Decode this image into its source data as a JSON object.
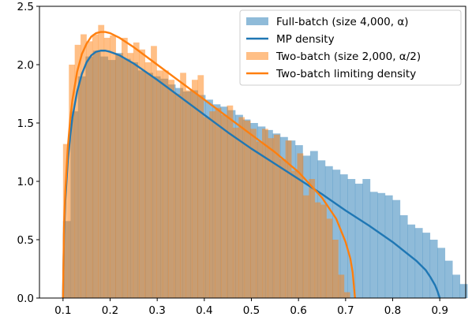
{
  "chart_data": {
    "type": "bar",
    "title": "",
    "xlabel": "",
    "ylabel": "",
    "xlim": [
      0.05,
      0.955
    ],
    "ylim": [
      0,
      2.5
    ],
    "xticks": [
      0.1,
      0.2,
      0.3,
      0.4,
      0.5,
      0.6,
      0.7,
      0.8,
      0.9
    ],
    "yticks": [
      0.0,
      0.5,
      1.0,
      1.5,
      2.0,
      2.5
    ],
    "grid": false,
    "legend_position": "top-right",
    "legend": [
      {
        "label": "Full-batch (size 4,000, α)",
        "kind": "patch",
        "series": "full"
      },
      {
        "label": "MP density",
        "kind": "line",
        "series": "mp"
      },
      {
        "label": "Two-batch (size 2,000, α/2)",
        "kind": "patch",
        "series": "two"
      },
      {
        "label": "Two-batch limiting density",
        "kind": "line",
        "series": "twolim"
      }
    ],
    "series": [
      {
        "id": "full",
        "type": "histogram",
        "color": "#1f77b4",
        "alpha": 0.5,
        "bin_width": 0.0159,
        "x_start": 0.1,
        "values": [
          0.66,
          1.6,
          1.9,
          2.07,
          2.12,
          2.07,
          2.04,
          2.1,
          2.05,
          2.02,
          1.95,
          1.93,
          1.9,
          1.88,
          1.83,
          1.8,
          1.77,
          1.78,
          1.74,
          1.7,
          1.66,
          1.64,
          1.61,
          1.57,
          1.53,
          1.5,
          1.47,
          1.44,
          1.41,
          1.38,
          1.35,
          1.31,
          1.22,
          1.26,
          1.18,
          1.13,
          1.1,
          1.06,
          1.02,
          0.98,
          1.02,
          0.91,
          0.9,
          0.88,
          0.84,
          0.71,
          0.63,
          0.6,
          0.56,
          0.5,
          0.43,
          0.32,
          0.2,
          0.12
        ]
      },
      {
        "id": "two",
        "type": "histogram",
        "color": "#ff7f0e",
        "alpha": 0.5,
        "bin_width": 0.01243,
        "x_start": 0.1,
        "values": [
          1.32,
          2.0,
          2.17,
          2.26,
          2.2,
          2.26,
          2.34,
          2.23,
          2.25,
          2.09,
          2.23,
          2.1,
          2.19,
          2.13,
          2.02,
          2.16,
          1.95,
          1.95,
          1.87,
          1.75,
          1.93,
          1.78,
          1.87,
          1.91,
          1.55,
          1.6,
          1.63,
          1.57,
          1.65,
          1.46,
          1.55,
          1.52,
          1.45,
          1.34,
          1.45,
          1.37,
          1.4,
          1.19,
          1.35,
          1.09,
          1.24,
          0.88,
          1.02,
          0.82,
          0.8,
          0.68,
          0.5,
          0.2,
          0.05,
          0.0
        ]
      },
      {
        "id": "mp",
        "type": "line",
        "color": "#1f77b4",
        "x": [
          0.1,
          0.102,
          0.105,
          0.11,
          0.115,
          0.12,
          0.13,
          0.14,
          0.15,
          0.16,
          0.17,
          0.18,
          0.19,
          0.2,
          0.22,
          0.25,
          0.3,
          0.35,
          0.4,
          0.45,
          0.5,
          0.55,
          0.6,
          0.65,
          0.7,
          0.75,
          0.8,
          0.85,
          0.87,
          0.88,
          0.89,
          0.895,
          0.9
        ],
        "y": [
          0.0,
          0.54,
          0.84,
          1.17,
          1.38,
          1.55,
          1.77,
          1.92,
          2.02,
          2.08,
          2.11,
          2.12,
          2.12,
          2.11,
          2.08,
          2.01,
          1.87,
          1.72,
          1.57,
          1.42,
          1.28,
          1.15,
          1.02,
          0.89,
          0.75,
          0.62,
          0.48,
          0.32,
          0.24,
          0.18,
          0.11,
          0.06,
          0.0
        ]
      },
      {
        "id": "twolim",
        "type": "line",
        "color": "#ff7f0e",
        "x": [
          0.1,
          0.102,
          0.105,
          0.11,
          0.115,
          0.12,
          0.13,
          0.14,
          0.15,
          0.16,
          0.17,
          0.18,
          0.19,
          0.2,
          0.22,
          0.25,
          0.3,
          0.35,
          0.4,
          0.45,
          0.5,
          0.55,
          0.6,
          0.65,
          0.68,
          0.7,
          0.71,
          0.715,
          0.72
        ],
        "y": [
          0.0,
          0.6,
          0.92,
          1.28,
          1.52,
          1.7,
          1.94,
          2.09,
          2.18,
          2.24,
          2.27,
          2.28,
          2.28,
          2.27,
          2.23,
          2.15,
          2.0,
          1.85,
          1.7,
          1.55,
          1.4,
          1.25,
          1.08,
          0.86,
          0.68,
          0.48,
          0.34,
          0.22,
          0.0
        ]
      }
    ]
  }
}
